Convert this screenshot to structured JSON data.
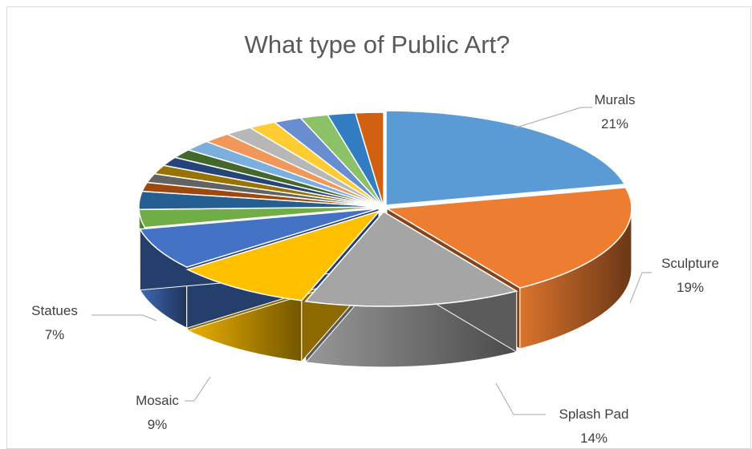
{
  "chart_data": {
    "type": "pie",
    "variant": "3d-exploded-tilt",
    "title": "What type of Public Art?",
    "start_angle_deg": 0,
    "direction": "clockwise",
    "slices": [
      {
        "name": "Murals",
        "value": 21,
        "label": "21%",
        "color": "#5b9bd5",
        "labeled": true
      },
      {
        "name": "Sculpture",
        "value": 19,
        "label": "19%",
        "color": "#ed7d31",
        "labeled": true
      },
      {
        "name": "Splash Pad",
        "value": 14,
        "label": "14%",
        "color": "#a5a5a5",
        "labeled": true
      },
      {
        "name": "Mosaic",
        "value": 9,
        "label": "9%",
        "color": "#ffc000",
        "labeled": true
      },
      {
        "name": "Statues",
        "value": 7,
        "label": "7%",
        "color": "#4472c4",
        "labeled": true
      },
      {
        "name": "",
        "value": 3,
        "label": "",
        "color": "#70ad47",
        "labeled": false
      },
      {
        "name": "",
        "value": 3,
        "label": "",
        "color": "#255e91",
        "labeled": false
      },
      {
        "name": "",
        "value": 1.5,
        "label": "",
        "color": "#9e480e",
        "labeled": false
      },
      {
        "name": "",
        "value": 1.5,
        "label": "",
        "color": "#636363",
        "labeled": false
      },
      {
        "name": "",
        "value": 1.5,
        "label": "",
        "color": "#997300",
        "labeled": false
      },
      {
        "name": "",
        "value": 1.5,
        "label": "",
        "color": "#264478",
        "labeled": false
      },
      {
        "name": "",
        "value": 1.5,
        "label": "",
        "color": "#43682b",
        "labeled": false
      },
      {
        "name": "",
        "value": 1.8,
        "label": "",
        "color": "#7cafdd",
        "labeled": false
      },
      {
        "name": "",
        "value": 1.8,
        "label": "",
        "color": "#f1975a",
        "labeled": false
      },
      {
        "name": "",
        "value": 1.8,
        "label": "",
        "color": "#b7b7b7",
        "labeled": false
      },
      {
        "name": "",
        "value": 1.8,
        "label": "",
        "color": "#ffcd33",
        "labeled": false
      },
      {
        "name": "",
        "value": 1.8,
        "label": "",
        "color": "#698ed0",
        "labeled": false
      },
      {
        "name": "",
        "value": 1.8,
        "label": "",
        "color": "#8cc168",
        "labeled": false
      },
      {
        "name": "",
        "value": 1.8,
        "label": "",
        "color": "#327dc2",
        "labeled": false
      },
      {
        "name": "",
        "value": 1.8,
        "label": "",
        "color": "#d26012",
        "labeled": false
      }
    ],
    "legend": "none"
  }
}
